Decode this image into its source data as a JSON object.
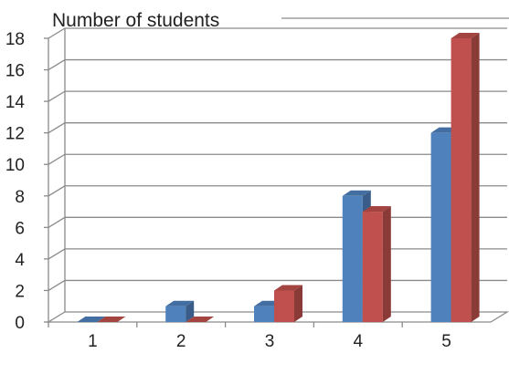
{
  "chart_data": {
    "type": "bar",
    "style": "3d-clustered",
    "ylabel": "Number of students",
    "xlabel": "",
    "categories": [
      "1",
      "2",
      "3",
      "4",
      "5"
    ],
    "series": [
      {
        "color": "#4F81BD",
        "values": [
          0,
          1,
          1,
          8,
          12
        ]
      },
      {
        "color": "#C0504D",
        "values": [
          0,
          0,
          2,
          7,
          18
        ]
      }
    ],
    "ylim": [
      0,
      18
    ],
    "yticks": [
      "0",
      "2",
      "4",
      "6",
      "8",
      "10",
      "12",
      "14",
      "16",
      "18"
    ],
    "grid": true,
    "legend": "none"
  }
}
